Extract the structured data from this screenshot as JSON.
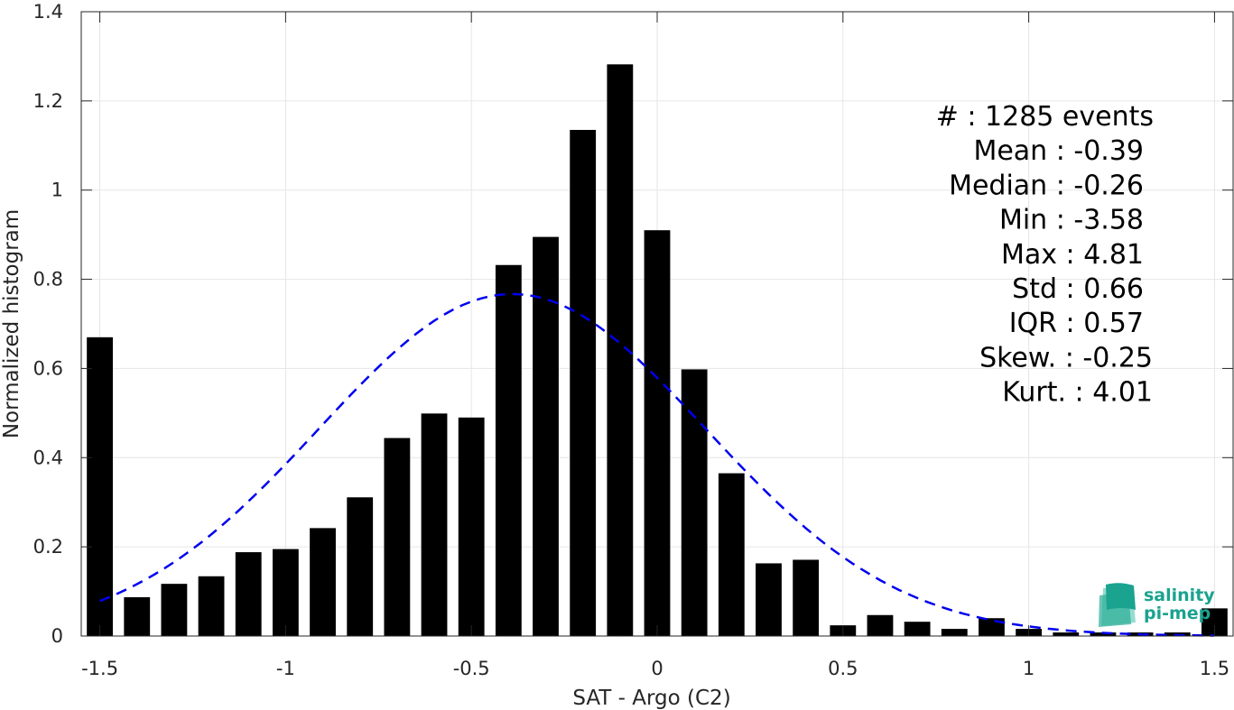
{
  "chart_data": {
    "type": "bar",
    "xlabel": "SAT - Argo (C2)",
    "ylabel": "Normalized histogram",
    "xlim": [
      -1.55,
      1.55
    ],
    "ylim": [
      0,
      1.4
    ],
    "grid": true,
    "x_ticks": [
      -1.5,
      -1,
      -0.5,
      0,
      0.5,
      1,
      1.5
    ],
    "x_tick_labels": [
      "-1.5",
      "-1",
      "-0.5",
      "0",
      "0.5",
      "1",
      "1.5"
    ],
    "y_ticks": [
      0,
      0.2,
      0.4,
      0.6,
      0.8,
      1,
      1.2,
      1.4
    ],
    "y_tick_labels": [
      "0",
      "0.2",
      "0.4",
      "0.6",
      "0.8",
      "1",
      "1.2",
      "1.4"
    ],
    "bar_width": 0.07,
    "bars_color": "#000000",
    "x": [
      -1.5,
      -1.4,
      -1.3,
      -1.2,
      -1.1,
      -1.0,
      -0.9,
      -0.8,
      -0.7,
      -0.6,
      -0.5,
      -0.4,
      -0.3,
      -0.2,
      -0.1,
      0.0,
      0.1,
      0.2,
      0.3,
      0.4,
      0.5,
      0.6,
      0.7,
      0.8,
      0.9,
      1.0,
      1.1,
      1.2,
      1.3,
      1.4,
      1.5
    ],
    "values": [
      0.67,
      0.087,
      0.117,
      0.134,
      0.188,
      0.195,
      0.242,
      0.311,
      0.444,
      0.499,
      0.49,
      0.832,
      0.895,
      1.135,
      1.282,
      0.91,
      0.598,
      0.365,
      0.163,
      0.171,
      0.024,
      0.047,
      0.032,
      0.016,
      0.04,
      0.016,
      0.008,
      0.008,
      0.008,
      0.008,
      0.062
    ],
    "fit_curve": {
      "style": "dashed",
      "color": "#0000ee",
      "mean": -0.39,
      "std": 0.52,
      "peak": 0.767,
      "range": [
        -1.5,
        1.5
      ]
    },
    "stats": [
      "#  : 1285 events",
      "Mean : -0.39",
      "Median : -0.26",
      "Min : -3.58",
      "Max : 4.81",
      "Std : 0.66",
      "IQR : 0.57",
      "Skew. : -0.25",
      "Kurt. : 4.01"
    ]
  },
  "logo": {
    "line1": "salinity",
    "line2": "pi-mep",
    "color": "#1aa38f"
  }
}
